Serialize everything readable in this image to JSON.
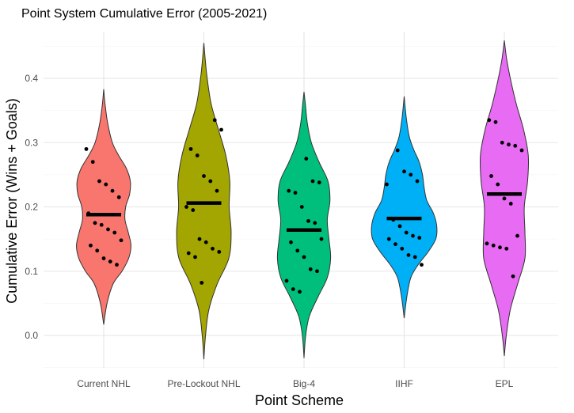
{
  "chart_data": {
    "type": "violin",
    "title": "Point System Cumulative Error (2005-2021)",
    "xlabel": "Point Scheme",
    "ylabel": "Cumulative Error (Wins + Goals)",
    "ylim": [
      -0.05,
      0.46
    ],
    "yticks": [
      0.0,
      0.1,
      0.2,
      0.3,
      0.4
    ],
    "ytick_labels": [
      "0.0",
      "0.1",
      "0.2",
      "0.3",
      "0.4"
    ],
    "grid": true,
    "legend": "none",
    "categories": [
      "Current NHL",
      "Pre-Lockout NHL",
      "Big-4",
      "IIHF",
      "EPL"
    ],
    "series": [
      {
        "category": "Current NHL",
        "color": "#F8766D",
        "median": 0.188,
        "range": [
          0.017,
          0.383
        ],
        "density": [
          [
            0.017,
            0.0
          ],
          [
            0.05,
            0.1
          ],
          [
            0.08,
            0.28
          ],
          [
            0.1,
            0.55
          ],
          [
            0.12,
            0.75
          ],
          [
            0.14,
            0.82
          ],
          [
            0.16,
            0.74
          ],
          [
            0.18,
            0.64
          ],
          [
            0.2,
            0.66
          ],
          [
            0.22,
            0.78
          ],
          [
            0.24,
            0.8
          ],
          [
            0.26,
            0.68
          ],
          [
            0.28,
            0.45
          ],
          [
            0.3,
            0.26
          ],
          [
            0.33,
            0.12
          ],
          [
            0.36,
            0.04
          ],
          [
            0.383,
            0.0
          ]
        ],
        "points": [
          0.29,
          0.27,
          0.24,
          0.235,
          0.225,
          0.215,
          0.19,
          0.175,
          0.172,
          0.165,
          0.16,
          0.148,
          0.14,
          0.132,
          0.12,
          0.115,
          0.11
        ]
      },
      {
        "category": "Pre-Lockout NHL",
        "color": "#A3A500",
        "median": 0.206,
        "range": [
          -0.037,
          0.455
        ],
        "density": [
          [
            -0.037,
            0.0
          ],
          [
            0.0,
            0.05
          ],
          [
            0.04,
            0.15
          ],
          [
            0.08,
            0.4
          ],
          [
            0.12,
            0.75
          ],
          [
            0.16,
            0.82
          ],
          [
            0.2,
            0.76
          ],
          [
            0.24,
            0.78
          ],
          [
            0.28,
            0.66
          ],
          [
            0.32,
            0.44
          ],
          [
            0.36,
            0.22
          ],
          [
            0.4,
            0.1
          ],
          [
            0.43,
            0.04
          ],
          [
            0.455,
            0.0
          ]
        ],
        "points": [
          0.335,
          0.32,
          0.29,
          0.28,
          0.248,
          0.24,
          0.225,
          0.2,
          0.195,
          0.15,
          0.145,
          0.135,
          0.13,
          0.128,
          0.122,
          0.082
        ]
      },
      {
        "category": "Big-4",
        "color": "#00BF7D",
        "median": 0.164,
        "range": [
          -0.035,
          0.379
        ],
        "density": [
          [
            -0.035,
            0.0
          ],
          [
            0.0,
            0.05
          ],
          [
            0.03,
            0.16
          ],
          [
            0.06,
            0.42
          ],
          [
            0.09,
            0.7
          ],
          [
            0.12,
            0.8
          ],
          [
            0.15,
            0.75
          ],
          [
            0.18,
            0.7
          ],
          [
            0.21,
            0.78
          ],
          [
            0.24,
            0.72
          ],
          [
            0.27,
            0.45
          ],
          [
            0.3,
            0.22
          ],
          [
            0.33,
            0.1
          ],
          [
            0.36,
            0.04
          ],
          [
            0.379,
            0.0
          ]
        ],
        "points": [
          0.275,
          0.24,
          0.238,
          0.225,
          0.222,
          0.2,
          0.178,
          0.175,
          0.15,
          0.145,
          0.132,
          0.122,
          0.103,
          0.1,
          0.085,
          0.072,
          0.068
        ]
      },
      {
        "category": "IIHF",
        "color": "#00B0F6",
        "median": 0.182,
        "range": [
          0.027,
          0.372
        ],
        "density": [
          [
            0.027,
            0.0
          ],
          [
            0.06,
            0.08
          ],
          [
            0.09,
            0.2
          ],
          [
            0.11,
            0.42
          ],
          [
            0.13,
            0.72
          ],
          [
            0.15,
            0.95
          ],
          [
            0.17,
            0.98
          ],
          [
            0.19,
            0.88
          ],
          [
            0.21,
            0.68
          ],
          [
            0.23,
            0.6
          ],
          [
            0.25,
            0.55
          ],
          [
            0.27,
            0.45
          ],
          [
            0.29,
            0.28
          ],
          [
            0.31,
            0.15
          ],
          [
            0.34,
            0.06
          ],
          [
            0.372,
            0.0
          ]
        ],
        "points": [
          0.288,
          0.255,
          0.25,
          0.24,
          0.235,
          0.18,
          0.17,
          0.16,
          0.155,
          0.152,
          0.15,
          0.142,
          0.135,
          0.125,
          0.122,
          0.11
        ]
      },
      {
        "category": "EPL",
        "color": "#E76BF3",
        "median": 0.22,
        "range": [
          -0.032,
          0.459
        ],
        "density": [
          [
            -0.032,
            0.0
          ],
          [
            0.0,
            0.06
          ],
          [
            0.04,
            0.18
          ],
          [
            0.08,
            0.4
          ],
          [
            0.12,
            0.62
          ],
          [
            0.16,
            0.62
          ],
          [
            0.2,
            0.6
          ],
          [
            0.24,
            0.7
          ],
          [
            0.28,
            0.72
          ],
          [
            0.32,
            0.58
          ],
          [
            0.36,
            0.36
          ],
          [
            0.4,
            0.18
          ],
          [
            0.43,
            0.07
          ],
          [
            0.459,
            0.0
          ]
        ],
        "points": [
          0.335,
          0.332,
          0.3,
          0.297,
          0.295,
          0.288,
          0.248,
          0.235,
          0.213,
          0.205,
          0.155,
          0.143,
          0.14,
          0.137,
          0.135,
          0.092
        ]
      }
    ]
  }
}
